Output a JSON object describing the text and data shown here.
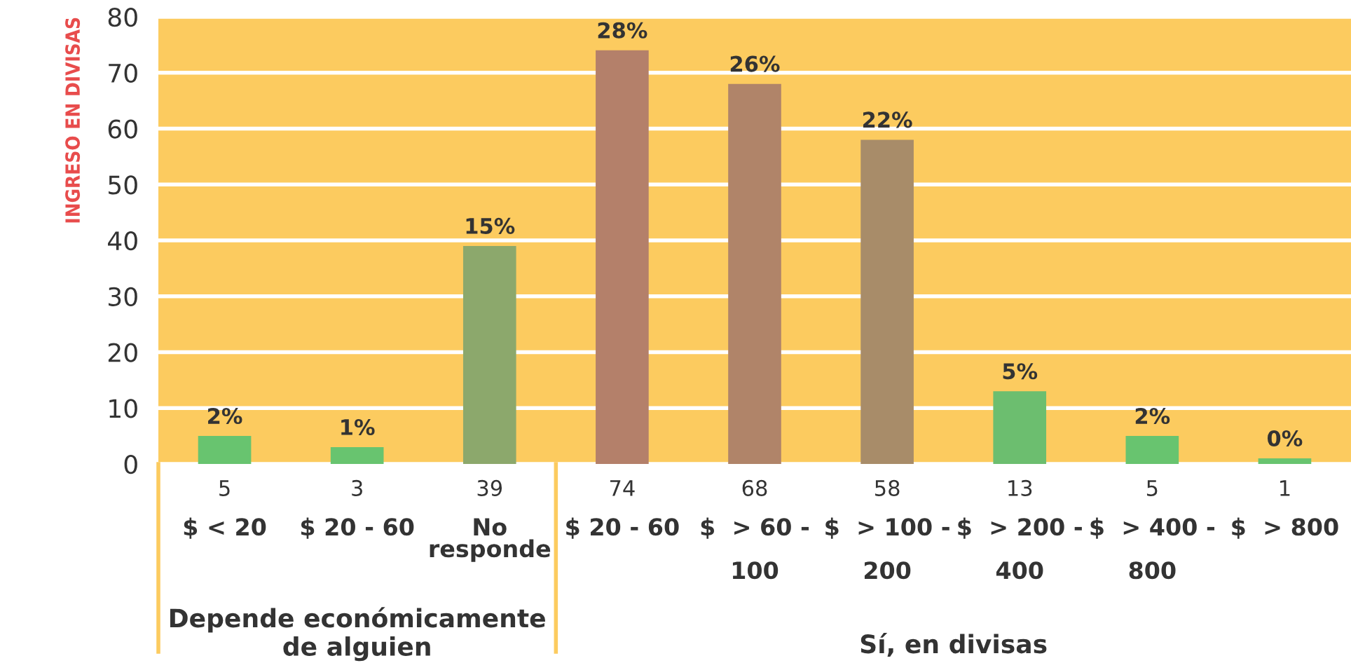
{
  "chart_data": {
    "type": "bar",
    "ylabel": "INGRESO EN DIVISAS",
    "categories": [
      "$ < 20",
      "$ 20 - 60",
      "No\nresponde",
      "$ 20 - 60",
      "$  > 60 -\n\n100",
      "$  > 100 -\n\n200",
      "$  > 200 -\n\n400",
      "$  > 400 -\n\n800",
      "$  > 800"
    ],
    "values": [
      5,
      3,
      39,
      74,
      68,
      58,
      13,
      5,
      1
    ],
    "colors": [
      "#68c46f",
      "#68c46f",
      "#8ca86c",
      "#b4806a",
      "#b08469",
      "#a88c69",
      "#6cbe6f",
      "#68c46f",
      "#68c46f"
    ],
    "value_labels": [
      "5",
      "3",
      "39",
      "74",
      "68",
      "58",
      "13",
      "5",
      "1"
    ],
    "annotations": [
      "2%",
      "1%",
      "15%",
      "28%",
      "26%",
      "22%",
      "5%",
      "2%",
      "0%",
      "Depende económicamente\nde alguien",
      "Sí, en divisas"
    ],
    "ylim": [
      0,
      80
    ],
    "yticks": [
      0,
      10,
      20,
      30,
      40,
      50,
      60,
      70,
      80
    ],
    "grid": "y"
  }
}
